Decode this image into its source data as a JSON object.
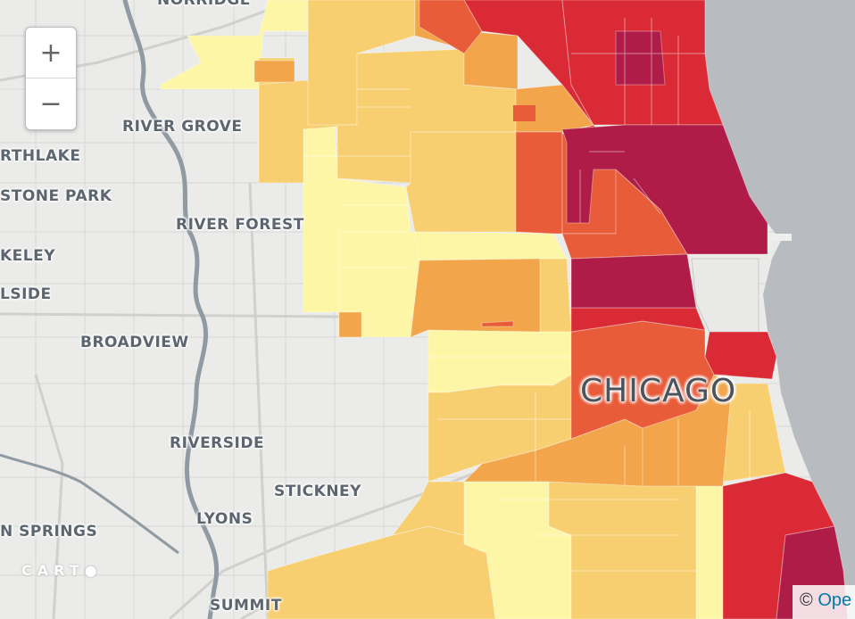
{
  "zoom": {
    "in_label": "+",
    "out_label": "−"
  },
  "labels": {
    "norridge": "NORRIDGE",
    "river_grove": "RIVER GROVE",
    "northlake": "RTHLAKE",
    "stone_park": "STONE PARK",
    "river_forest": "RIVER FOREST",
    "berkeley": "KELEY",
    "hillside": "LSIDE",
    "broadview": "BROADVIEW",
    "chicago": "CHICAGO",
    "riverside": "RIVERSIDE",
    "stickney": "STICKNEY",
    "lyons": "LYONS",
    "justice_springs": "N SPRINGS",
    "summit": "SUMMIT"
  },
  "branding": {
    "carto": "CART",
    "attribution_symbol": "©",
    "attribution_link": "Ope"
  },
  "colors": {
    "lake": "#b8bcc0",
    "land": "#ebebe9",
    "very_low": "#fdf6a6",
    "low": "#f8cf70",
    "medium": "#f2a54a",
    "high": "#e85c3a",
    "very_high": "#d92a35",
    "max": "#b01c48"
  }
}
